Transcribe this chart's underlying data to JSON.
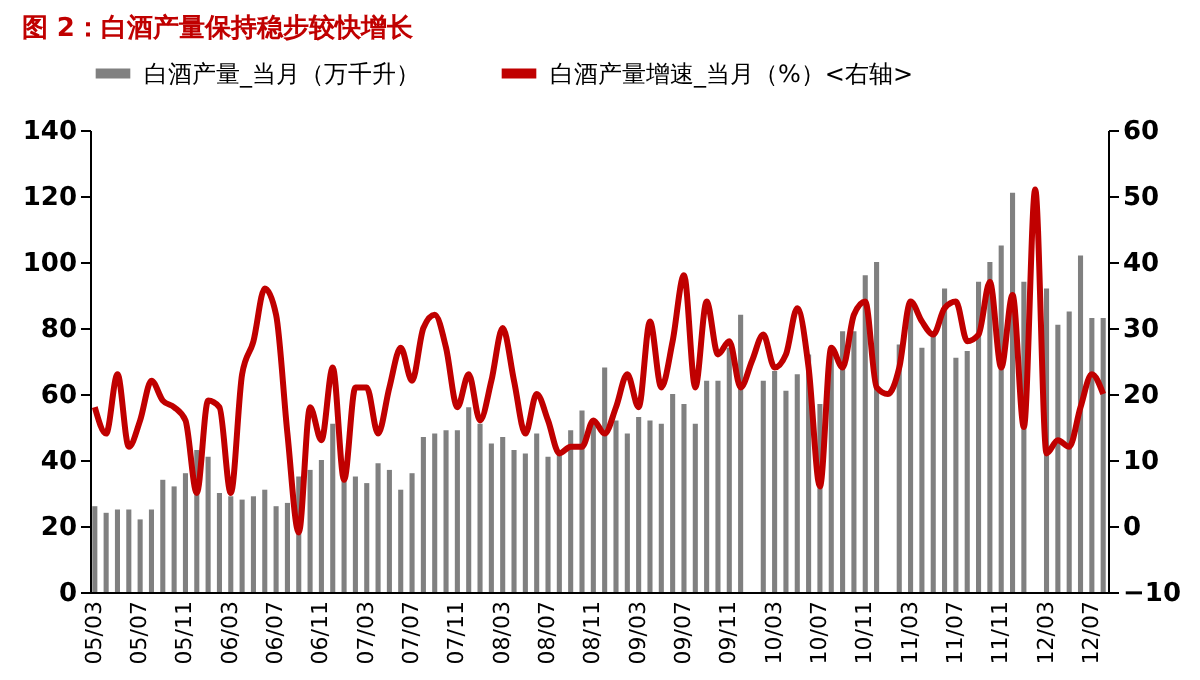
{
  "chart_data": {
    "type": "bar",
    "title": "图 2：白酒产量保持稳步较快增长",
    "categories": [
      "05/03",
      null,
      null,
      null,
      "05/07",
      null,
      null,
      null,
      "05/11",
      null,
      null,
      null,
      "06/03",
      null,
      null,
      null,
      "06/07",
      null,
      null,
      null,
      "06/11",
      null,
      null,
      null,
      "07/03",
      null,
      null,
      null,
      "07/07",
      null,
      null,
      null,
      "07/11",
      null,
      null,
      null,
      "08/03",
      null,
      null,
      null,
      "08/07",
      null,
      null,
      null,
      "08/11",
      null,
      null,
      null,
      "09/03",
      null,
      null,
      null,
      "09/07",
      null,
      null,
      null,
      "09/11",
      null,
      null,
      null,
      "10/03",
      null,
      null,
      null,
      "10/07",
      null,
      null,
      null,
      "10/11",
      null,
      null,
      null,
      "11/03",
      null,
      null,
      null,
      "11/07",
      null,
      null,
      null,
      "11/11",
      null,
      null,
      null,
      "12/03",
      null,
      null,
      null,
      "12/07",
      null
    ],
    "series": [
      {
        "name": "白酒产量_当月（万千升）",
        "color": "#808080",
        "values": [
          26,
          24,
          25,
          25,
          22,
          25,
          34,
          32,
          36,
          43,
          41,
          30,
          29,
          28,
          29,
          31,
          26,
          27,
          35,
          37,
          40,
          51,
          34,
          35,
          33,
          39,
          37,
          31,
          36,
          47,
          48,
          49,
          49,
          56,
          51,
          45,
          47,
          43,
          42,
          48,
          41,
          42,
          49,
          55,
          52,
          68,
          52,
          48,
          53,
          52,
          51,
          60,
          57,
          51,
          64,
          64,
          74,
          84,
          null,
          64,
          67,
          61,
          66,
          72,
          57,
          72,
          79,
          79,
          96,
          100,
          null,
          75,
          88,
          74,
          79,
          92,
          71,
          73,
          94,
          100,
          105,
          121,
          94,
          null,
          92,
          81,
          85,
          102,
          83,
          83
        ]
      },
      {
        "name": "白酒产量增速_当月（%）<右轴>",
        "type": "line",
        "axis": "y2",
        "color": "#c00000",
        "values": [
          18,
          14,
          23,
          12,
          16,
          22,
          19,
          18,
          16,
          5,
          19,
          18,
          5,
          23,
          28,
          36,
          32,
          14,
          -1,
          18,
          13,
          24,
          7,
          21,
          21,
          14,
          21,
          27,
          22,
          30,
          32,
          27,
          18,
          23,
          16,
          22,
          30,
          22,
          14,
          20,
          16,
          11,
          12,
          12,
          16,
          14,
          18,
          23,
          18,
          31,
          21,
          28,
          38,
          21,
          34,
          26,
          28,
          21,
          25,
          29,
          24,
          26,
          33,
          24,
          6,
          27,
          24,
          32,
          34,
          21,
          20,
          24,
          34,
          31,
          29,
          33,
          34,
          28,
          29,
          37,
          24,
          35,
          15,
          51,
          11,
          13,
          12,
          18,
          23,
          20
        ]
      }
    ],
    "ylim": [
      0,
      140
    ],
    "yticks": [
      0,
      20,
      40,
      60,
      80,
      100,
      120,
      140
    ],
    "y2lim": [
      -10,
      60
    ],
    "y2ticks": [
      -10,
      0,
      10,
      20,
      30,
      40,
      50,
      60
    ],
    "grid": false,
    "legend": "top"
  }
}
